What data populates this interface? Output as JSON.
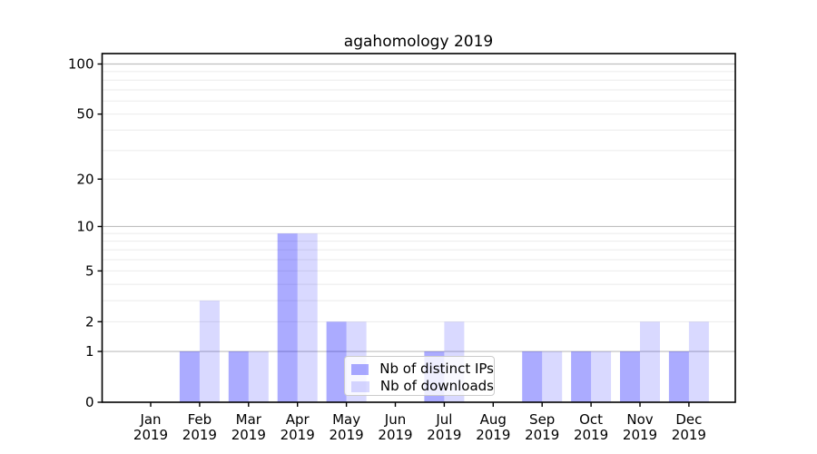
{
  "chart_data": {
    "type": "bar",
    "title": "agahomology 2019",
    "categories": [
      "Jan 2019",
      "Feb 2019",
      "Mar 2019",
      "Apr 2019",
      "May 2019",
      "Jun 2019",
      "Jul 2019",
      "Aug 2019",
      "Sep 2019",
      "Oct 2019",
      "Nov 2019",
      "Dec 2019"
    ],
    "series": [
      {
        "name": "Nb of distinct IPs",
        "color": "#0000ff54",
        "values": [
          0,
          1,
          1,
          9,
          2,
          0,
          1,
          0,
          1,
          1,
          1,
          1
        ]
      },
      {
        "name": "Nb of downloads",
        "color": "#0000ff26",
        "values": [
          0,
          3,
          1,
          9,
          2,
          0,
          2,
          0,
          1,
          1,
          2,
          2
        ]
      }
    ],
    "y_axis": {
      "scale": "log1p",
      "tick_labels": [
        0,
        1,
        2,
        5,
        10,
        20,
        50,
        100
      ],
      "major_gridlines": [
        1,
        10,
        100
      ],
      "minor_gridlines": [
        2,
        3,
        4,
        5,
        6,
        7,
        8,
        9,
        20,
        30,
        40,
        50,
        60,
        70,
        80,
        90
      ],
      "ylim": [
        0,
        115
      ]
    },
    "x_axis": {
      "tick_label_line2": "2019"
    },
    "legend": {
      "position": "lower center"
    },
    "grid": "y-only",
    "colors": {
      "major_grid": "#bfbfbf",
      "minor_grid": "#ebebeb",
      "axis": "#000000",
      "text": "#000000",
      "background": "#ffffff"
    }
  }
}
